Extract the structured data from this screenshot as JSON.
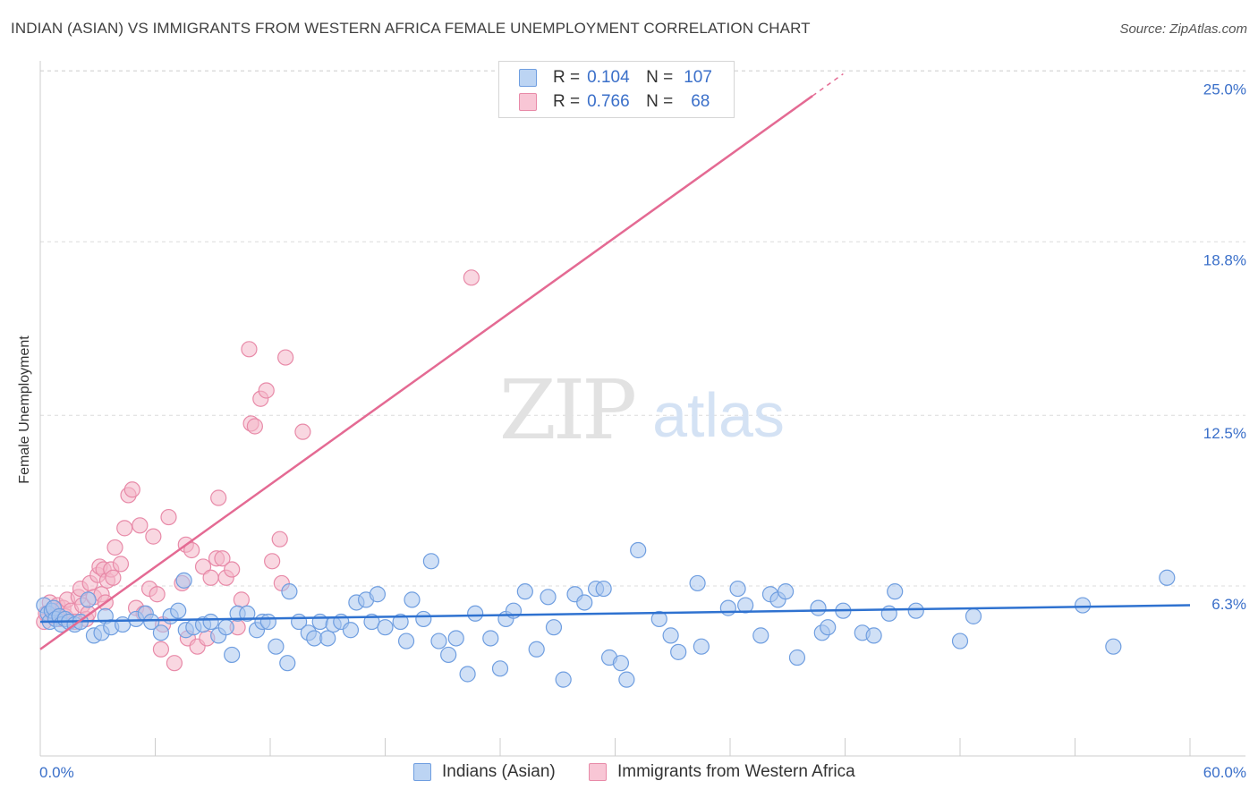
{
  "title": "INDIAN (ASIAN) VS IMMIGRANTS FROM WESTERN AFRICA FEMALE UNEMPLOYMENT CORRELATION CHART",
  "source": "Source: ZipAtlas.com",
  "watermark": {
    "zip": "ZIP",
    "atlas": "atlas"
  },
  "legend_top": {
    "rows": [
      {
        "r_label": "R = ",
        "r_value": "0.104",
        "n_label": "N = ",
        "n_value": "107"
      },
      {
        "r_label": "R = ",
        "r_value": "0.766",
        "n_label": "N = ",
        "n_value": "68"
      }
    ]
  },
  "legend_bottom": {
    "items": [
      {
        "label": "Indians (Asian)"
      },
      {
        "label": "Immigrants from Western Africa"
      }
    ]
  },
  "colors": {
    "blue_fill": "#a9c6ee",
    "blue_stroke": "#6f9ee0",
    "blue_line": "#2f72d0",
    "pink_fill": "#f4b6c9",
    "pink_stroke": "#e88aa8",
    "pink_line": "#e46a93",
    "axis_text": "#3a6fc9",
    "grid": "#dcdcdc"
  },
  "chart_data": {
    "type": "scatter",
    "title": "INDIAN (ASIAN) VS IMMIGRANTS FROM WESTERN AFRICA FEMALE UNEMPLOYMENT CORRELATION CHART",
    "xlabel": "",
    "ylabel": "Female Unemployment",
    "xlim": [
      0,
      60
    ],
    "ylim": [
      0,
      26
    ],
    "x_tick_labels": [
      "0.0%",
      "60.0%"
    ],
    "y_ticks": [
      6.3,
      12.5,
      18.8,
      25.0
    ],
    "y_tick_labels": [
      "6.3%",
      "12.5%",
      "18.8%",
      "25.0%"
    ],
    "grid": true,
    "legend": "top-center",
    "series": [
      {
        "name": "Indians (Asian)",
        "R": 0.104,
        "N": 107,
        "trend": {
          "x": [
            0,
            60
          ],
          "y": [
            5.0,
            5.6
          ]
        },
        "points": [
          [
            0.2,
            5.6
          ],
          [
            0.4,
            5.3
          ],
          [
            0.5,
            5.0
          ],
          [
            0.6,
            5.4
          ],
          [
            0.7,
            5.5
          ],
          [
            0.8,
            5.1
          ],
          [
            1.0,
            5.2
          ],
          [
            1.1,
            4.9
          ],
          [
            1.3,
            5.1
          ],
          [
            1.5,
            5.0
          ],
          [
            1.8,
            4.9
          ],
          [
            2.1,
            5.0
          ],
          [
            2.5,
            5.8
          ],
          [
            2.8,
            4.5
          ],
          [
            3.2,
            4.6
          ],
          [
            3.4,
            5.2
          ],
          [
            3.7,
            4.8
          ],
          [
            4.3,
            4.9
          ],
          [
            5.0,
            5.1
          ],
          [
            5.5,
            5.3
          ],
          [
            5.8,
            5.0
          ],
          [
            6.3,
            4.6
          ],
          [
            6.8,
            5.2
          ],
          [
            7.2,
            5.4
          ],
          [
            7.5,
            6.5
          ],
          [
            7.6,
            4.7
          ],
          [
            8.0,
            4.8
          ],
          [
            8.5,
            4.9
          ],
          [
            8.9,
            5.0
          ],
          [
            9.3,
            4.5
          ],
          [
            9.7,
            4.8
          ],
          [
            10.0,
            3.8
          ],
          [
            10.3,
            5.3
          ],
          [
            10.8,
            5.3
          ],
          [
            11.3,
            4.7
          ],
          [
            11.6,
            5.0
          ],
          [
            11.9,
            5.0
          ],
          [
            12.3,
            4.1
          ],
          [
            12.9,
            3.5
          ],
          [
            13.0,
            6.1
          ],
          [
            13.5,
            5.0
          ],
          [
            14.0,
            4.6
          ],
          [
            14.3,
            4.4
          ],
          [
            14.6,
            5.0
          ],
          [
            15.0,
            4.4
          ],
          [
            15.3,
            4.9
          ],
          [
            15.7,
            5.0
          ],
          [
            16.2,
            4.7
          ],
          [
            16.5,
            5.7
          ],
          [
            17.0,
            5.8
          ],
          [
            17.3,
            5.0
          ],
          [
            17.6,
            6.0
          ],
          [
            18.0,
            4.8
          ],
          [
            18.8,
            5.0
          ],
          [
            19.1,
            4.3
          ],
          [
            19.4,
            5.8
          ],
          [
            20.0,
            5.1
          ],
          [
            20.4,
            7.2
          ],
          [
            20.8,
            4.3
          ],
          [
            21.3,
            3.8
          ],
          [
            21.7,
            4.4
          ],
          [
            22.3,
            3.1
          ],
          [
            22.7,
            5.3
          ],
          [
            23.5,
            4.4
          ],
          [
            24.0,
            3.3
          ],
          [
            24.3,
            5.1
          ],
          [
            24.7,
            5.4
          ],
          [
            25.3,
            6.1
          ],
          [
            25.9,
            4.0
          ],
          [
            26.5,
            5.9
          ],
          [
            26.8,
            4.8
          ],
          [
            27.3,
            2.9
          ],
          [
            27.9,
            6.0
          ],
          [
            28.4,
            5.7
          ],
          [
            29.0,
            6.2
          ],
          [
            29.4,
            6.2
          ],
          [
            29.7,
            3.7
          ],
          [
            30.3,
            3.5
          ],
          [
            30.6,
            2.9
          ],
          [
            31.2,
            7.6
          ],
          [
            32.3,
            5.1
          ],
          [
            32.9,
            4.5
          ],
          [
            33.3,
            3.9
          ],
          [
            34.3,
            6.4
          ],
          [
            34.5,
            4.1
          ],
          [
            35.9,
            5.5
          ],
          [
            36.4,
            6.2
          ],
          [
            36.8,
            5.6
          ],
          [
            37.6,
            4.5
          ],
          [
            38.1,
            6.0
          ],
          [
            38.5,
            5.8
          ],
          [
            38.9,
            6.1
          ],
          [
            39.5,
            3.7
          ],
          [
            40.6,
            5.5
          ],
          [
            40.8,
            4.6
          ],
          [
            41.1,
            4.8
          ],
          [
            41.9,
            5.4
          ],
          [
            42.9,
            4.6
          ],
          [
            43.5,
            4.5
          ],
          [
            44.3,
            5.3
          ],
          [
            44.6,
            6.1
          ],
          [
            45.7,
            5.4
          ],
          [
            48.0,
            4.3
          ],
          [
            48.7,
            5.2
          ],
          [
            54.4,
            5.6
          ],
          [
            56.0,
            4.1
          ],
          [
            58.8,
            6.6
          ]
        ]
      },
      {
        "name": "Immigrants from Western Africa",
        "R": 0.766,
        "N": 68,
        "trend": {
          "x": [
            0,
            40.3
          ],
          "y": [
            4.0,
            24.1
          ],
          "x_dash_end": 41.9,
          "y_dash_end": 24.9
        },
        "points": [
          [
            0.2,
            5.0
          ],
          [
            0.3,
            5.3
          ],
          [
            0.5,
            5.7
          ],
          [
            0.7,
            5.2
          ],
          [
            0.8,
            5.4
          ],
          [
            0.9,
            5.6
          ],
          [
            1.0,
            5.1
          ],
          [
            1.2,
            5.5
          ],
          [
            1.3,
            5.2
          ],
          [
            1.4,
            5.8
          ],
          [
            1.6,
            5.4
          ],
          [
            1.8,
            5.0
          ],
          [
            2.0,
            5.9
          ],
          [
            2.1,
            6.2
          ],
          [
            2.2,
            5.6
          ],
          [
            2.4,
            5.1
          ],
          [
            2.5,
            5.3
          ],
          [
            2.6,
            6.4
          ],
          [
            2.8,
            5.9
          ],
          [
            3.0,
            6.7
          ],
          [
            3.1,
            7.0
          ],
          [
            3.2,
            6.0
          ],
          [
            3.3,
            6.9
          ],
          [
            3.4,
            5.7
          ],
          [
            3.5,
            6.5
          ],
          [
            3.7,
            6.9
          ],
          [
            3.8,
            6.6
          ],
          [
            3.9,
            7.7
          ],
          [
            4.2,
            7.1
          ],
          [
            4.4,
            8.4
          ],
          [
            4.6,
            9.6
          ],
          [
            4.8,
            9.8
          ],
          [
            5.0,
            5.5
          ],
          [
            5.2,
            8.5
          ],
          [
            5.4,
            5.3
          ],
          [
            5.7,
            6.2
          ],
          [
            5.9,
            8.1
          ],
          [
            6.1,
            6.0
          ],
          [
            6.3,
            4.0
          ],
          [
            6.4,
            4.9
          ],
          [
            6.7,
            8.8
          ],
          [
            7.0,
            3.5
          ],
          [
            7.4,
            6.4
          ],
          [
            7.6,
            7.8
          ],
          [
            7.7,
            4.4
          ],
          [
            7.9,
            7.6
          ],
          [
            8.2,
            4.1
          ],
          [
            8.5,
            7.0
          ],
          [
            8.7,
            4.4
          ],
          [
            8.9,
            6.6
          ],
          [
            9.2,
            7.3
          ],
          [
            9.3,
            9.5
          ],
          [
            9.5,
            7.3
          ],
          [
            9.7,
            6.6
          ],
          [
            10.0,
            6.9
          ],
          [
            10.3,
            4.8
          ],
          [
            10.5,
            5.8
          ],
          [
            10.9,
            14.9
          ],
          [
            11.0,
            12.2
          ],
          [
            11.2,
            12.1
          ],
          [
            11.5,
            13.1
          ],
          [
            11.8,
            13.4
          ],
          [
            12.1,
            7.2
          ],
          [
            12.5,
            8.0
          ],
          [
            12.6,
            6.4
          ],
          [
            12.8,
            14.6
          ],
          [
            13.7,
            11.9
          ],
          [
            22.5,
            17.5
          ]
        ]
      }
    ]
  }
}
